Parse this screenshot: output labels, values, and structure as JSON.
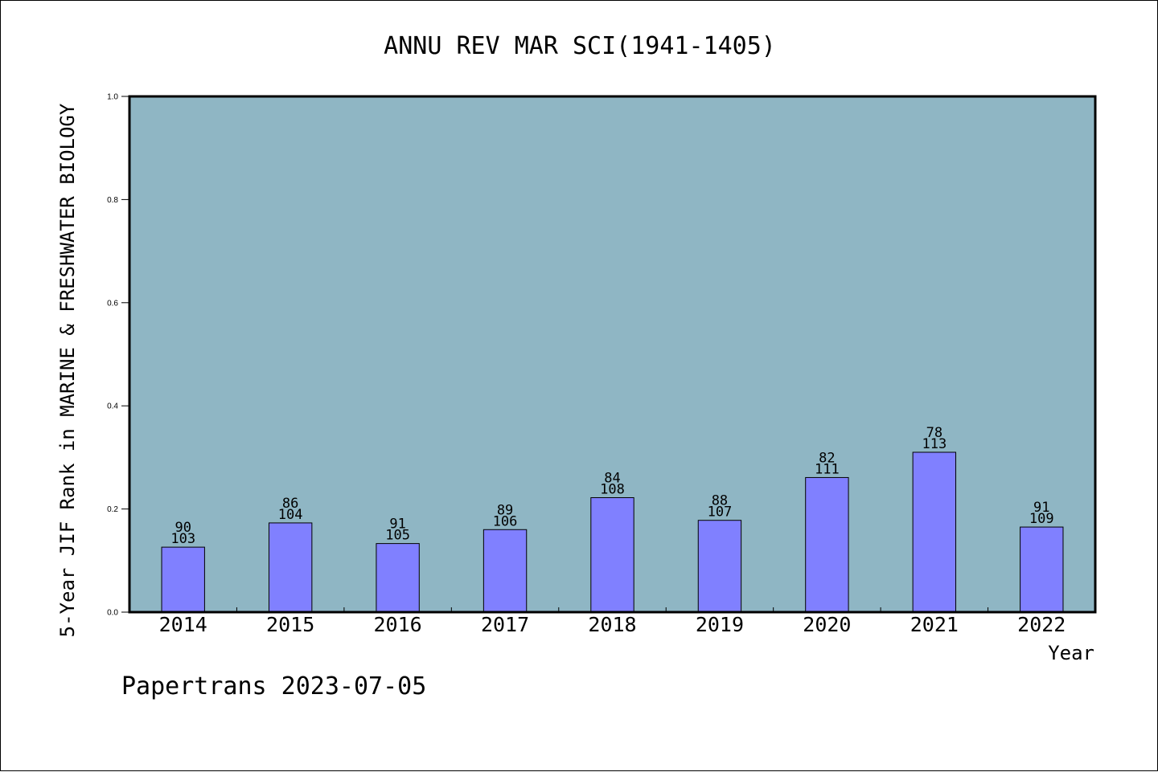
{
  "chart_data": {
    "type": "bar",
    "title": "ANNU REV MAR SCI(1941-1405)",
    "xlabel": "Year",
    "ylabel": "5-Year JIF Rank in MARINE & FRESHWATER BIOLOGY",
    "categories": [
      "2014",
      "2015",
      "2016",
      "2017",
      "2018",
      "2019",
      "2020",
      "2021",
      "2022"
    ],
    "values": [
      0.126,
      0.173,
      0.133,
      0.16,
      0.222,
      0.178,
      0.261,
      0.31,
      0.165
    ],
    "bar_labels": [
      {
        "rank": "90",
        "total": "103"
      },
      {
        "rank": "86",
        "total": "104"
      },
      {
        "rank": "91",
        "total": "105"
      },
      {
        "rank": "89",
        "total": "106"
      },
      {
        "rank": "84",
        "total": "108"
      },
      {
        "rank": "88",
        "total": "107"
      },
      {
        "rank": "82",
        "total": "111"
      },
      {
        "rank": "78",
        "total": "113"
      },
      {
        "rank": "91",
        "total": "109"
      }
    ],
    "ylim": [
      0,
      1.0
    ],
    "yticks": [
      "0.0",
      "0.2",
      "0.4",
      "0.6",
      "0.8",
      "1.0"
    ],
    "grid": false,
    "legend": "none",
    "colors": {
      "plot_background": "#8fb6c4",
      "bar_fill": "#8080ff",
      "bar_stroke": "#000000"
    }
  },
  "footer": {
    "credit": "Papertrans 2023-07-05"
  }
}
